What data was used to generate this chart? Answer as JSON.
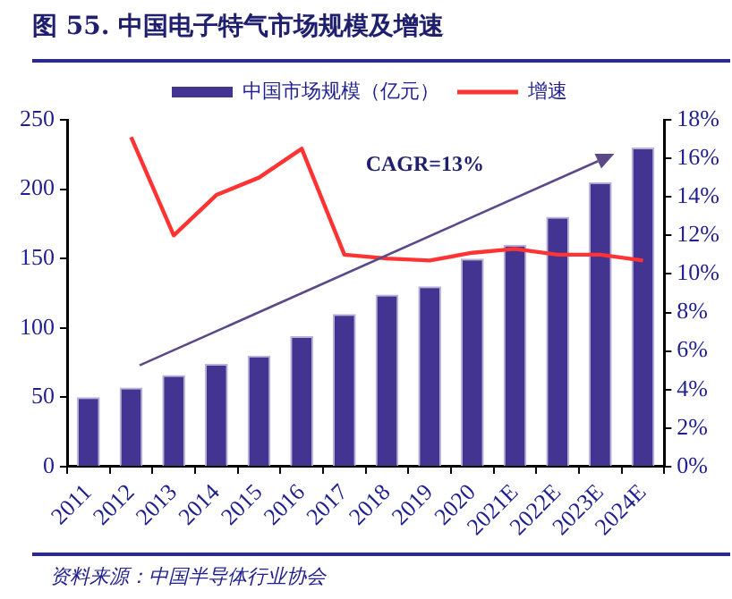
{
  "chart_data": {
    "type": "bar",
    "title": "图 55. 中国电子特气市场规模及增速",
    "categories": [
      "2011",
      "2012",
      "2013",
      "2014",
      "2015",
      "2016",
      "2017",
      "2018",
      "2019",
      "2020",
      "2021E",
      "2022E",
      "2023E",
      "2024E"
    ],
    "series": [
      {
        "name": "中国市场规模（亿元）",
        "color": "#433491",
        "values": [
          50,
          57,
          66,
          74,
          80,
          94,
          110,
          124,
          130,
          150,
          160,
          180,
          205,
          230
        ]
      },
      {
        "name": "增速",
        "type": "line",
        "axis": "y2",
        "color": "#ff3333",
        "values": [
          null,
          17.1,
          12.0,
          14.1,
          15.0,
          16.5,
          11.0,
          10.8,
          10.7,
          11.1,
          11.3,
          11.0,
          11.0,
          10.7
        ]
      }
    ],
    "ylim": [
      0,
      250
    ],
    "yticks": [
      0,
      50,
      100,
      150,
      200,
      250
    ],
    "y2lim": [
      0,
      18
    ],
    "y2ticks": [
      {
        "value": 0,
        "label": "0%"
      },
      {
        "value": 2,
        "label": "2%"
      },
      {
        "value": 4,
        "label": "4%"
      },
      {
        "value": 6,
        "label": "6%"
      },
      {
        "value": 8,
        "label": "8%"
      },
      {
        "value": 10,
        "label": "10%"
      },
      {
        "value": 12,
        "label": "12%"
      },
      {
        "value": 14,
        "label": "14%"
      },
      {
        "value": 16,
        "label": "16%"
      },
      {
        "value": 18,
        "label": "18%"
      }
    ],
    "annotations": [
      "CAGR=13%",
      "资料来源：中国半导体行业协会"
    ],
    "grid": false,
    "legend": "top",
    "marker": "none",
    "line_style": "solid"
  }
}
